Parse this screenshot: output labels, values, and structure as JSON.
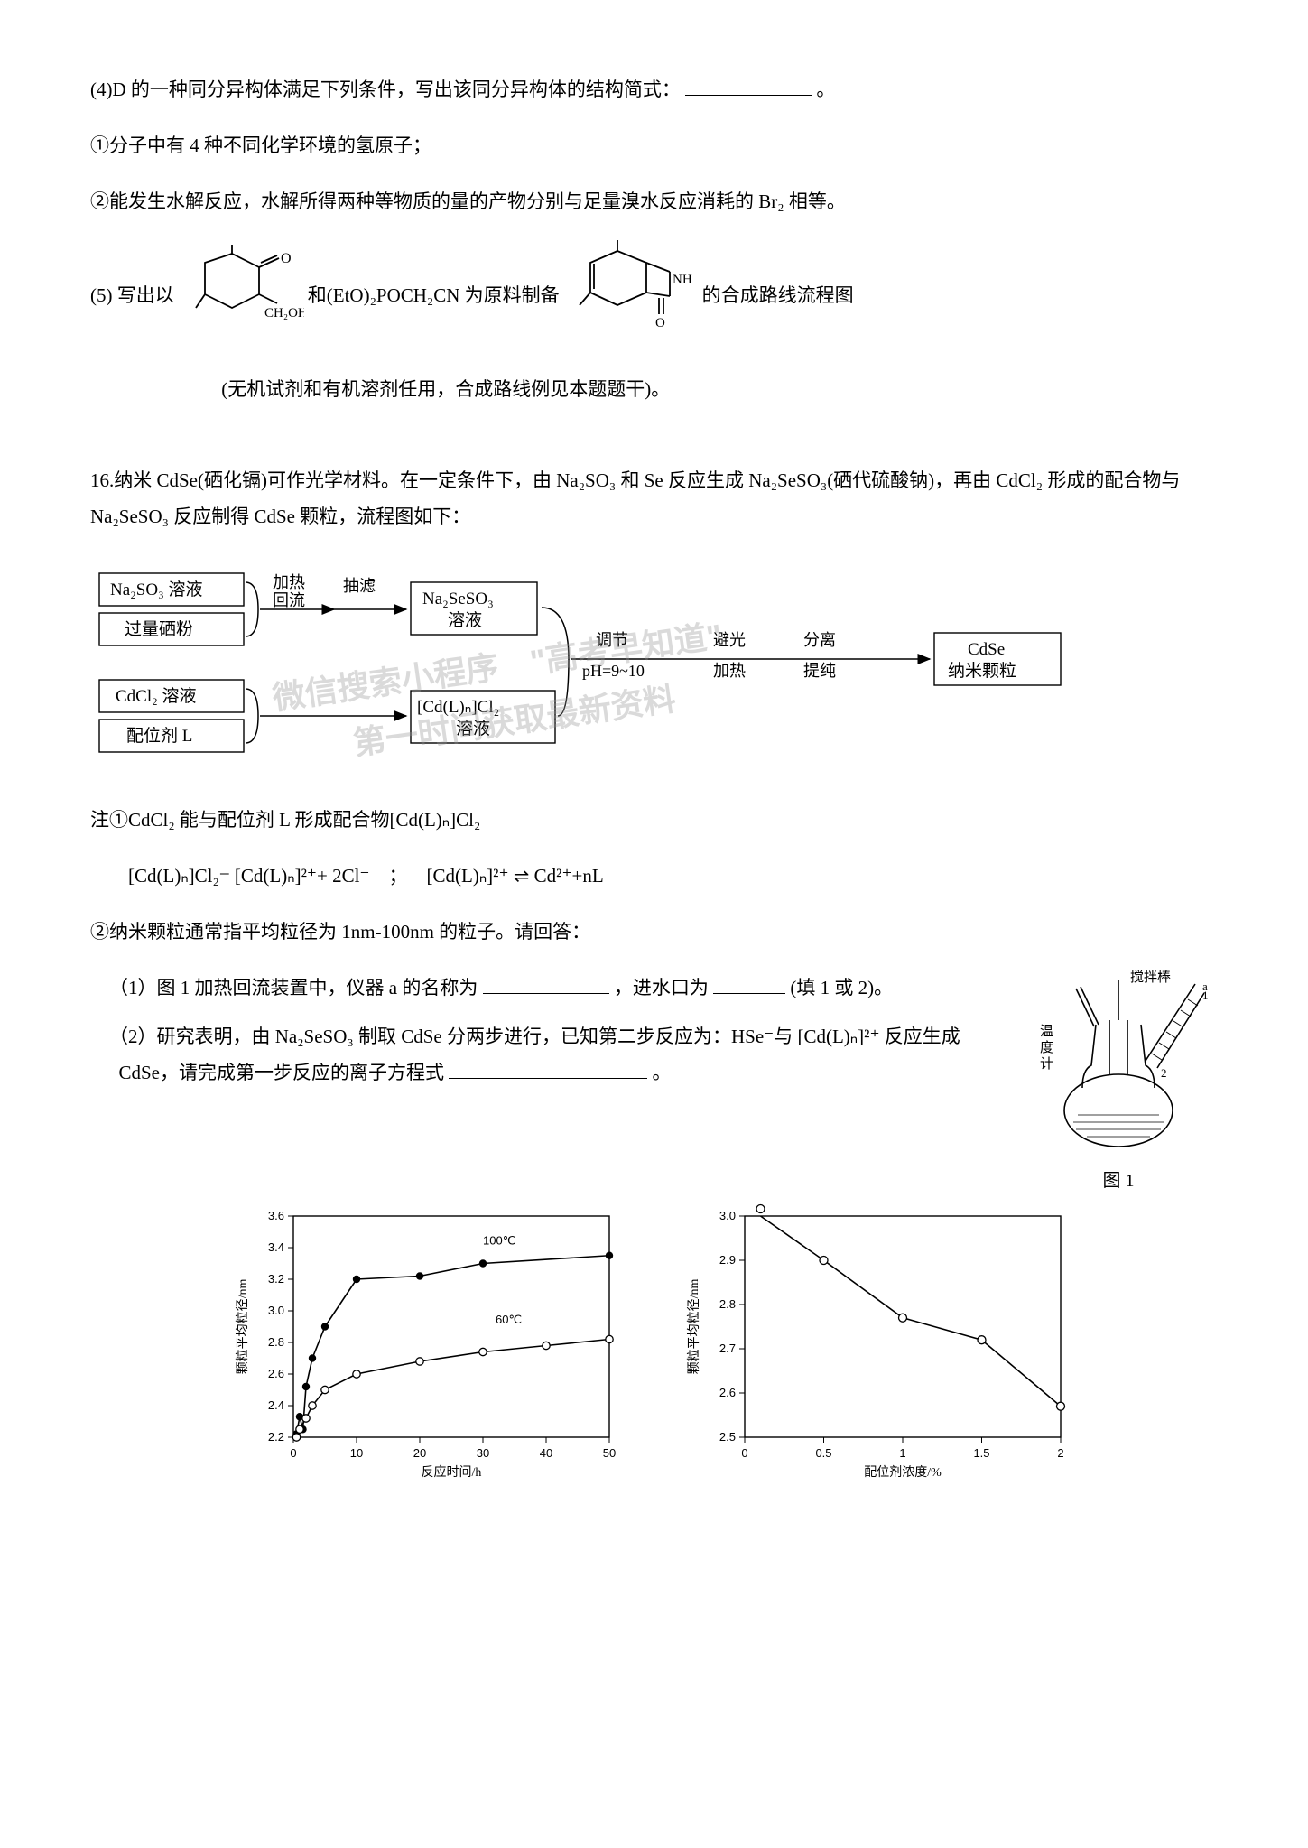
{
  "q4": "(4)D 的一种同分异构体满足下列条件，写出该同分异构体的结构简式：",
  "q4_end": "。",
  "q4_1": "①分子中有 4 种不同化学环境的氢原子；",
  "q4_2": "②能发生水解反应，水解所得两种等物质的量的产物分别与足量溴水反应消耗的 Br₂ 相等。",
  "q5_a": "(5) 写出以",
  "q5_b": "和(EtO)₂POCH₂CN 为原料制备",
  "q5_c": "的合成路线流程图",
  "q5_d": "(无机试剂和有机溶剂任用，合成路线例见本题题干)。",
  "q16_intro": "16.纳米 CdSe(硒化镉)可作光学材料。在一定条件下，由 Na₂SO₃ 和 Se 反应生成 Na₂SeSO₃(硒代硫酸钠)，再由 CdCl₂ 形成的配合物与 Na₂SeSO₃ 反应制得 CdSe 颗粒，流程图如下：",
  "flow": {
    "box1": "Na₂SO₃ 溶液",
    "box2": "过量硒粉",
    "box3": "CdCl₂ 溶液",
    "box4": "配位剂 L",
    "step1a": "加热",
    "step1b": "回流",
    "step2": "抽滤",
    "box5a": "Na₂SeSO₃",
    "box5b": "溶液",
    "box6a": "[Cd(L)ₙ]Cl₂",
    "box6b": "溶液",
    "step3a": "调节",
    "step3b": "pH=9~10",
    "step4a": "避光",
    "step4b": "加热",
    "step5a": "分离",
    "step5b": "提纯",
    "box7a": "CdSe",
    "box7b": "纳米颗粒"
  },
  "note1": "注①CdCl₂ 能与配位剂 L 形成配合物[Cd(L)ₙ]Cl₂",
  "note1_eq": "[Cd(L)ₙ]Cl₂= [Cd(L)ₙ]²⁺+ 2Cl⁻ ； [Cd(L)ₙ]²⁺ ⇌ Cd²⁺+nL",
  "note2": "②纳米颗粒通常指平均粒径为 1nm-100nm 的粒子。请回答：",
  "q16_1a": "（1）图 1 加热回流装置中，仪器 a 的名称为",
  "q16_1b": "，进水口为",
  "q16_1c": "(填 1 或 2)。",
  "q16_2a": "（2）研究表明，由 Na₂SeSO₃ 制取 CdSe 分两步进行，已知第二步反应为：HSe⁻与 [Cd(L)ₙ]²⁺ 反应生成 CdSe，请完成第一步反应的离子方程式",
  "q16_2b": "。",
  "fig1_label": "图 1",
  "apparatus": {
    "stir": "搅拌棒",
    "therm1": "温",
    "therm2": "度",
    "therm3": "计"
  },
  "chart_left": {
    "type": "line-scatter",
    "xlabel": "反应时间/h",
    "ylabel": "颗粒平均粒径/nm",
    "series1_label": "100℃",
    "series2_label": "60℃",
    "xlim": [
      0,
      50
    ],
    "ylim": [
      2.2,
      3.6
    ],
    "xticks": [
      0,
      10,
      20,
      30,
      40,
      50
    ],
    "yticks": [
      2.2,
      2.4,
      2.6,
      2.8,
      3.0,
      3.2,
      3.4,
      3.6
    ],
    "s1_x": [
      0.5,
      1,
      1.5,
      2,
      3,
      5,
      10,
      20,
      30,
      50
    ],
    "s1_y": [
      2.22,
      2.33,
      2.25,
      2.52,
      2.7,
      2.9,
      3.2,
      3.22,
      3.3,
      3.35
    ],
    "s2_x": [
      0.5,
      1,
      2,
      3,
      5,
      10,
      20,
      30,
      40,
      50
    ],
    "s2_y": [
      2.2,
      2.25,
      2.32,
      2.4,
      2.5,
      2.6,
      2.68,
      2.74,
      2.78,
      2.82
    ],
    "s1_marker": "filled-circle",
    "s2_marker": "open-circle",
    "line_color": "#000000",
    "bg": "#ffffff"
  },
  "chart_right": {
    "type": "line-scatter",
    "xlabel": "配位剂浓度/%",
    "ylabel": "颗粒平均粒径/nm",
    "xlim": [
      0,
      2.0
    ],
    "ylim": [
      2.5,
      3.0
    ],
    "xticks": [
      0,
      0.5,
      1.0,
      1.5,
      2.0
    ],
    "yticks": [
      2.5,
      2.6,
      2.7,
      2.8,
      2.9,
      3.0
    ],
    "px": [
      0.1,
      0.5,
      1.0,
      1.5,
      2.0
    ],
    "py": [
      3.03,
      2.9,
      2.77,
      2.72,
      2.57
    ],
    "marker": "open-circle",
    "line_color": "#000000",
    "bg": "#ffffff"
  },
  "watermarks": {
    "w1": "微信搜索小程序 \"高考早知道\"",
    "w2": "第一时间获取最新资料"
  }
}
